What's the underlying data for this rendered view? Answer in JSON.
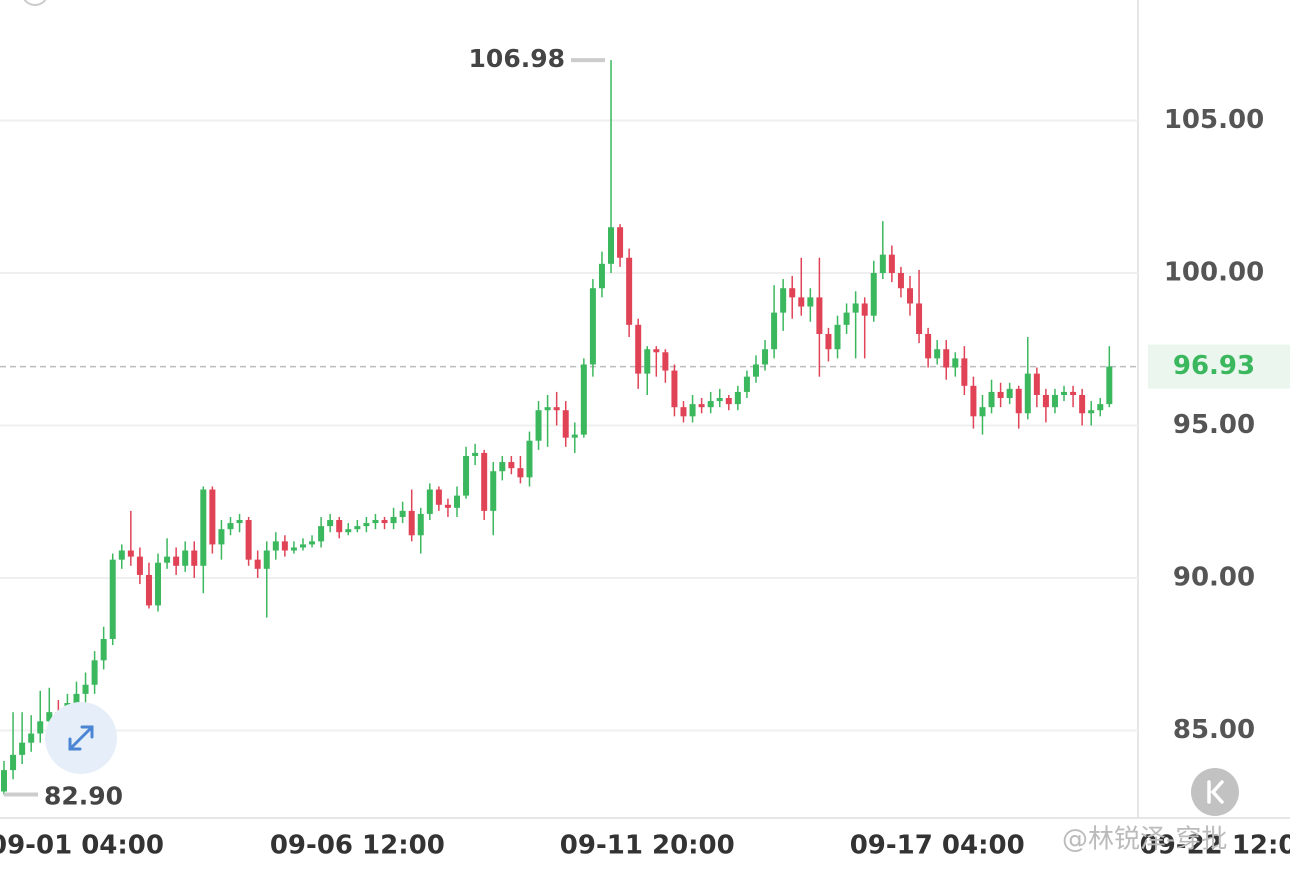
{
  "chart_data": {
    "type": "candlestick",
    "categories": [
      null,
      null,
      null,
      null,
      null,
      null,
      null,
      null,
      "09-01 04:00",
      null,
      null,
      null,
      null,
      null,
      null,
      null,
      null,
      null,
      null,
      null,
      null,
      null,
      null,
      null,
      null,
      null,
      null,
      null,
      null,
      null,
      null,
      null,
      null,
      null,
      null,
      null,
      null,
      null,
      null,
      "09-06 12:00",
      null,
      null,
      null,
      null,
      null,
      null,
      null,
      null,
      null,
      null,
      null,
      null,
      null,
      null,
      null,
      null,
      null,
      null,
      null,
      null,
      null,
      null,
      null,
      null,
      null,
      null,
      null,
      null,
      null,
      null,
      null,
      "09-11 20:00",
      null,
      null,
      null,
      null,
      null,
      null,
      null,
      null,
      null,
      null,
      null,
      null,
      null,
      null,
      null,
      null,
      null,
      null,
      null,
      null,
      null,
      null,
      null,
      null,
      null,
      null,
      null,
      null,
      null,
      null,
      null,
      "09-17 04:00",
      null,
      null,
      null,
      null,
      null,
      null,
      null,
      null,
      null,
      null,
      null,
      null,
      null,
      null,
      null,
      null,
      null,
      null,
      null,
      null,
      null,
      null,
      null,
      null,
      null,
      null,
      null,
      null,
      null,
      null,
      null,
      "09-22 12:00"
    ],
    "open": [
      83.0,
      83.7,
      84.2,
      84.6,
      84.9,
      85.3,
      85.6,
      85.4,
      85.9,
      86.2,
      86.5,
      87.3,
      88.0,
      90.6,
      90.9,
      90.7,
      90.1,
      89.1,
      90.5,
      90.7,
      90.4,
      90.9,
      90.4,
      92.9,
      91.1,
      91.6,
      91.8,
      91.9,
      90.6,
      90.3,
      90.9,
      91.2,
      90.9,
      91.0,
      91.1,
      91.2,
      91.7,
      91.9,
      91.5,
      91.6,
      91.7,
      91.8,
      91.9,
      91.8,
      92.0,
      92.2,
      91.4,
      92.1,
      92.9,
      92.4,
      92.3,
      92.7,
      94.0,
      94.1,
      92.2,
      93.5,
      93.8,
      93.6,
      93.3,
      94.5,
      95.5,
      95.6,
      95.5,
      94.6,
      94.7,
      97.0,
      99.5,
      100.3,
      101.5,
      100.5,
      98.3,
      96.7,
      97.5,
      97.4,
      96.8,
      95.6,
      95.3,
      95.7,
      95.6,
      95.8,
      95.9,
      95.7,
      96.1,
      96.6,
      97.0,
      97.5,
      98.7,
      99.5,
      99.2,
      98.9,
      99.2,
      98.0,
      97.5,
      98.3,
      98.7,
      99.0,
      98.6,
      100.0,
      100.6,
      100.0,
      99.5,
      99.0,
      98.0,
      97.2,
      97.5,
      96.9,
      97.2,
      96.3,
      95.3,
      95.6,
      96.1,
      95.9,
      96.2,
      95.4,
      96.7,
      96.0,
      95.6,
      96.0,
      96.1,
      96.0,
      95.4,
      95.5,
      95.7,
      null,
      null,
      null,
      null,
      null,
      null,
      null,
      null,
      null,
      null,
      null,
      null,
      null
    ],
    "high": [
      84.0,
      85.6,
      85.6,
      85.5,
      86.3,
      86.4,
      86.0,
      86.2,
      86.6,
      86.9,
      87.6,
      88.4,
      90.8,
      91.1,
      92.2,
      91.0,
      90.5,
      90.8,
      91.3,
      91.0,
      91.2,
      91.2,
      93.0,
      93.0,
      91.9,
      92.0,
      92.1,
      92.0,
      90.9,
      91.2,
      91.5,
      91.4,
      91.2,
      91.3,
      91.4,
      92.0,
      92.1,
      92.0,
      91.8,
      91.9,
      92.0,
      92.1,
      92.0,
      92.3,
      92.5,
      92.9,
      92.3,
      93.1,
      93.0,
      92.6,
      93.0,
      94.3,
      94.4,
      94.2,
      93.8,
      94.0,
      94.0,
      94.0,
      94.8,
      95.8,
      96.0,
      96.1,
      95.8,
      95.1,
      97.2,
      99.8,
      100.7,
      106.98,
      101.6,
      100.8,
      98.5,
      97.6,
      97.6,
      97.5,
      97.0,
      95.8,
      96.0,
      95.9,
      96.1,
      96.2,
      96.0,
      96.3,
      96.8,
      97.3,
      97.8,
      99.6,
      99.8,
      99.9,
      100.5,
      99.5,
      100.5,
      98.2,
      98.6,
      99.0,
      99.4,
      99.2,
      100.4,
      101.7,
      100.9,
      100.2,
      99.9,
      100.1,
      98.2,
      97.8,
      97.8,
      97.4,
      97.6,
      96.6,
      96.0,
      96.5,
      96.4,
      96.4,
      96.3,
      97.9,
      96.9,
      96.2,
      96.2,
      96.3,
      96.3,
      96.2,
      95.8,
      95.9,
      97.6,
      null,
      null,
      null,
      null,
      null,
      null,
      null,
      null,
      null,
      null,
      null,
      null,
      null
    ],
    "low": [
      82.9,
      83.4,
      83.9,
      84.3,
      84.6,
      85.0,
      84.8,
      85.1,
      85.6,
      85.9,
      86.2,
      87.0,
      87.8,
      90.3,
      90.4,
      89.8,
      89.0,
      88.9,
      90.3,
      90.1,
      90.2,
      90.0,
      89.5,
      90.8,
      90.6,
      91.4,
      91.5,
      90.4,
      90.0,
      88.7,
      90.6,
      90.7,
      90.8,
      90.9,
      91.0,
      91.0,
      91.5,
      91.3,
      91.4,
      91.5,
      91.5,
      91.6,
      91.6,
      91.6,
      91.8,
      91.2,
      90.8,
      91.9,
      92.2,
      92.0,
      92.0,
      92.6,
      93.7,
      91.9,
      91.4,
      93.2,
      93.4,
      93.1,
      93.0,
      94.2,
      94.3,
      95.0,
      94.3,
      94.1,
      94.6,
      96.6,
      99.2,
      100.0,
      100.2,
      97.9,
      96.2,
      96.0,
      96.6,
      96.4,
      95.3,
      95.1,
      95.1,
      95.4,
      95.4,
      95.6,
      95.5,
      95.5,
      95.9,
      96.4,
      96.8,
      97.2,
      98.1,
      98.5,
      98.6,
      98.4,
      96.6,
      97.1,
      97.2,
      98.0,
      97.2,
      97.2,
      98.4,
      99.8,
      99.7,
      99.2,
      98.6,
      97.7,
      96.9,
      97.0,
      96.5,
      96.6,
      96.0,
      94.9,
      94.7,
      95.4,
      95.6,
      95.7,
      94.9,
      95.2,
      95.6,
      95.1,
      95.4,
      95.8,
      95.6,
      95.0,
      95.0,
      95.3,
      95.6,
      null,
      null,
      null,
      null,
      null,
      null,
      null,
      null,
      null,
      null,
      null,
      null,
      null
    ],
    "close": [
      83.7,
      84.2,
      84.6,
      84.9,
      85.3,
      85.6,
      85.4,
      85.9,
      86.2,
      86.5,
      87.3,
      88.0,
      90.6,
      90.9,
      90.7,
      90.1,
      89.1,
      90.5,
      90.7,
      90.4,
      90.9,
      90.4,
      92.9,
      91.1,
      91.6,
      91.8,
      91.9,
      90.6,
      90.3,
      90.9,
      91.2,
      90.9,
      91.0,
      91.1,
      91.2,
      91.7,
      91.9,
      91.5,
      91.6,
      91.7,
      91.8,
      91.9,
      91.8,
      92.0,
      92.2,
      91.4,
      92.1,
      92.9,
      92.4,
      92.3,
      92.7,
      94.0,
      94.1,
      92.2,
      93.5,
      93.8,
      93.6,
      93.3,
      94.5,
      95.5,
      95.6,
      95.5,
      94.6,
      94.7,
      97.0,
      99.5,
      100.3,
      101.5,
      100.5,
      98.3,
      96.7,
      97.5,
      97.4,
      96.8,
      95.6,
      95.3,
      95.7,
      95.6,
      95.8,
      95.9,
      95.7,
      96.1,
      96.6,
      97.0,
      97.5,
      98.7,
      99.5,
      99.2,
      98.9,
      99.2,
      98.0,
      97.5,
      98.3,
      98.7,
      99.0,
      98.6,
      100.0,
      100.6,
      100.0,
      99.5,
      99.0,
      98.0,
      97.2,
      97.5,
      96.9,
      97.2,
      96.3,
      95.3,
      95.6,
      96.1,
      95.9,
      96.2,
      95.4,
      96.7,
      96.0,
      95.6,
      96.0,
      96.1,
      96.0,
      95.4,
      95.5,
      95.7,
      96.93,
      null,
      null,
      null,
      null,
      null,
      null,
      null,
      null,
      null,
      null,
      null,
      null,
      null
    ],
    "up_color": "#3bb75e",
    "down_color": "#e04256",
    "ylim": [
      82.13,
      108.95
    ],
    "yticks": [
      {
        "value": 85,
        "label": "85.00"
      },
      {
        "value": 90,
        "label": "90.00"
      },
      {
        "value": 95,
        "label": "95.00"
      },
      {
        "value": 100,
        "label": "100.00"
      },
      {
        "value": 105,
        "label": "105.00"
      }
    ],
    "grid": true,
    "max_label": 106.98,
    "min_label": {
      "value": 82.9,
      "label": "82.90"
    },
    "last_price": 96.93,
    "watermark": "@林锐泽-穿批"
  }
}
